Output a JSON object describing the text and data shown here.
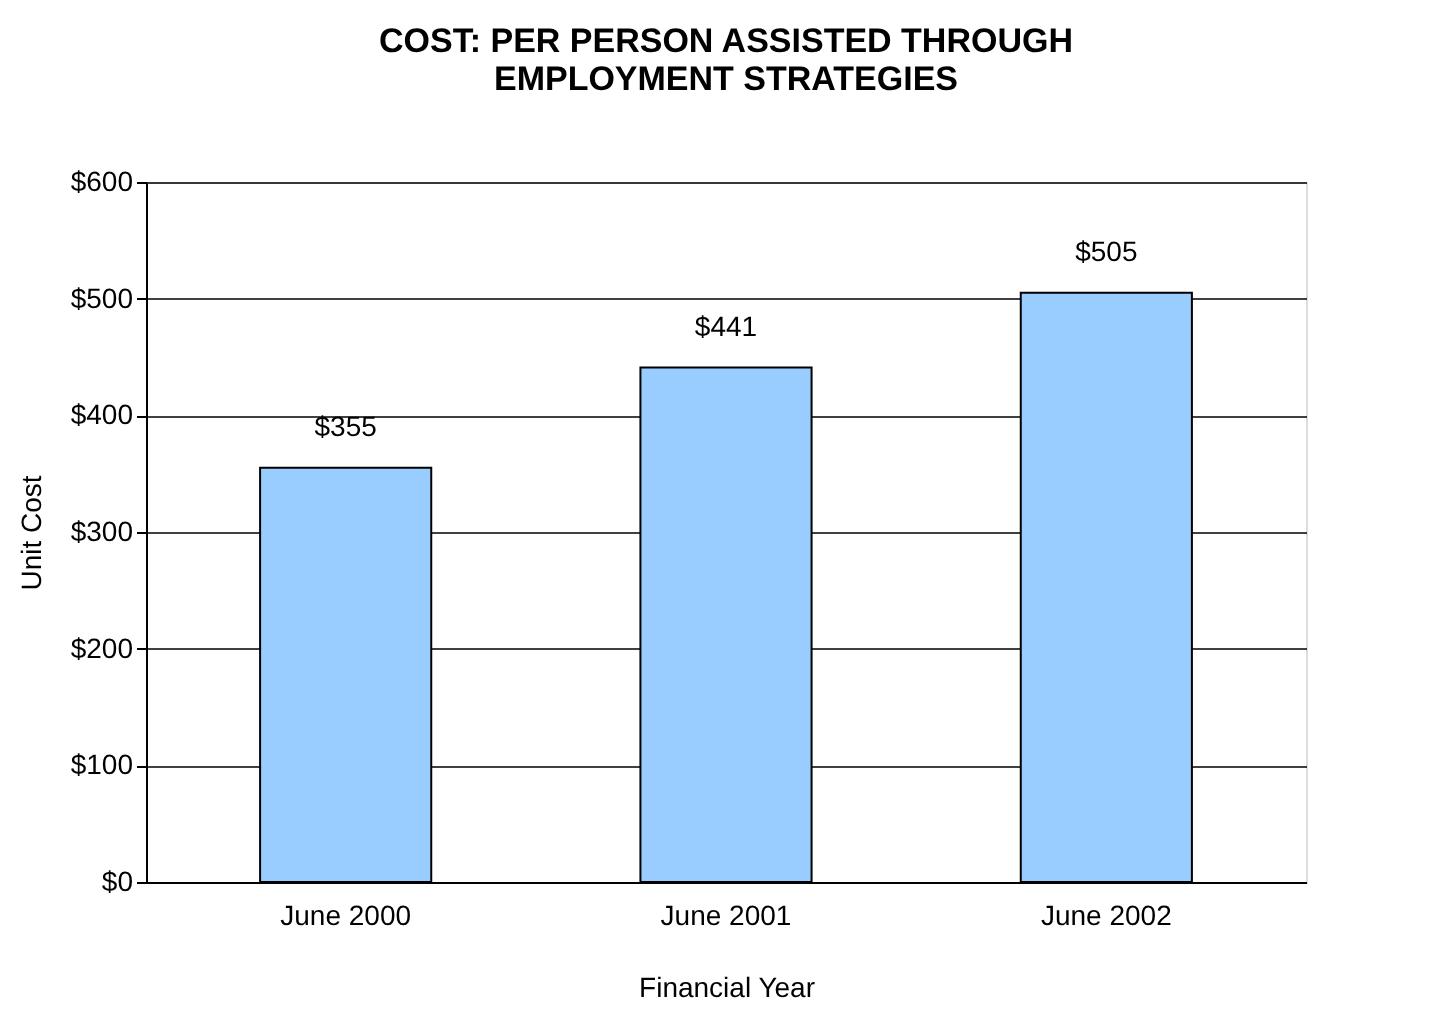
{
  "chart_data": {
    "type": "bar",
    "title": "COST: PER  PERSON ASSISTED THROUGH\nEMPLOYMENT STRATEGIES",
    "xlabel": "Financial Year",
    "ylabel": "Unit Cost",
    "categories": [
      "June 2000",
      "June 2001",
      "June 2002"
    ],
    "values": [
      355,
      441,
      505
    ],
    "color": "#99ccff",
    "value_labels": [
      "$355",
      "$441",
      "$505"
    ],
    "ylim": [
      0,
      600
    ],
    "yticks": [
      {
        "value": 0,
        "label": "$0"
      },
      {
        "value": 100,
        "label": "$100"
      },
      {
        "value": 200,
        "label": "$200"
      },
      {
        "value": 300,
        "label": "$300"
      },
      {
        "value": 400,
        "label": "$400"
      },
      {
        "value": 500,
        "label": "$500"
      },
      {
        "value": 600,
        "label": "$600"
      }
    ],
    "grid": "y"
  }
}
